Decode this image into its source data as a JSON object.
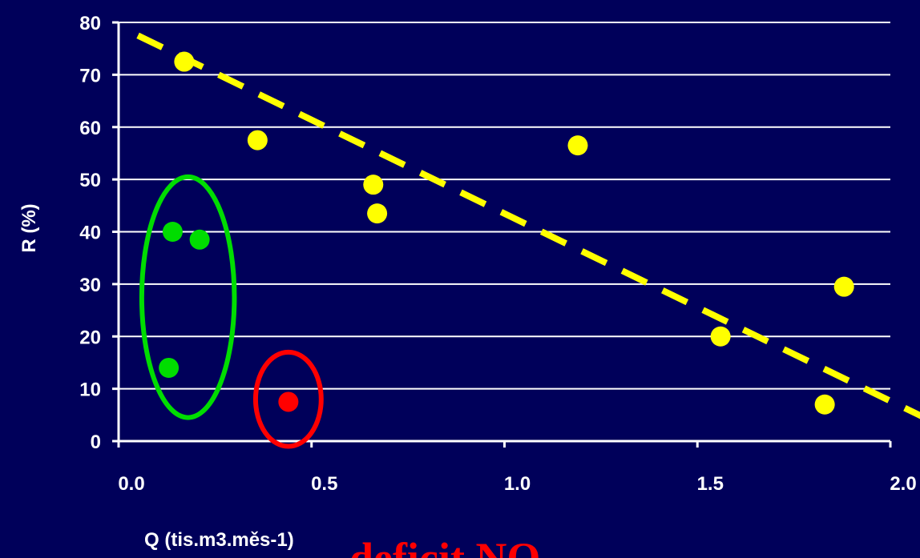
{
  "chart_data": {
    "type": "scatter",
    "title": "",
    "xlabel": "Q (tis.m3.měs-1)",
    "ylabel": "R (%)",
    "xlim": [
      0.0,
      2.0
    ],
    "ylim": [
      0,
      80
    ],
    "x_ticks": [
      "0.0",
      "0.5",
      "1.0",
      "1.5",
      "2.0"
    ],
    "y_ticks": [
      "0",
      "10",
      "20",
      "30",
      "40",
      "50",
      "60",
      "70",
      "80"
    ],
    "grid": "horizontal",
    "colors": {
      "background": "#00005a",
      "axis": "#ffffff",
      "grid": "#ffffff",
      "yellow": "#ffff00",
      "green": "#00dd00",
      "red": "#ff0000"
    },
    "series": [
      {
        "color": "#ffff00",
        "points": [
          {
            "x": 0.17,
            "y": 72.5
          },
          {
            "x": 0.36,
            "y": 57.5
          },
          {
            "x": 0.66,
            "y": 49.0
          },
          {
            "x": 0.67,
            "y": 43.5
          },
          {
            "x": 1.19,
            "y": 56.5
          },
          {
            "x": 1.56,
            "y": 20.0
          },
          {
            "x": 1.83,
            "y": 7.0
          },
          {
            "x": 1.88,
            "y": 29.5
          }
        ]
      },
      {
        "color": "#00dd00",
        "points": [
          {
            "x": 0.14,
            "y": 40.0
          },
          {
            "x": 0.21,
            "y": 38.5
          },
          {
            "x": 0.13,
            "y": 14.0
          }
        ]
      },
      {
        "color": "#ff0000",
        "points": [
          {
            "x": 0.44,
            "y": 7.5
          }
        ]
      }
    ],
    "trendline": {
      "style": "dashed",
      "color": "#ffff00",
      "from": {
        "x": 0.05,
        "y": 77.5
      },
      "to": {
        "x": 2.2,
        "y": 0.5
      }
    },
    "groupings": [
      {
        "color": "#00dd00",
        "cx": 0.18,
        "cy": 27.5,
        "rx": 0.24,
        "ry": 23.0
      },
      {
        "color": "#ff0000",
        "cx": 0.44,
        "cy": 8.0,
        "rx": 0.17,
        "ry": 9.0
      }
    ],
    "annotation": "deficit NO"
  }
}
